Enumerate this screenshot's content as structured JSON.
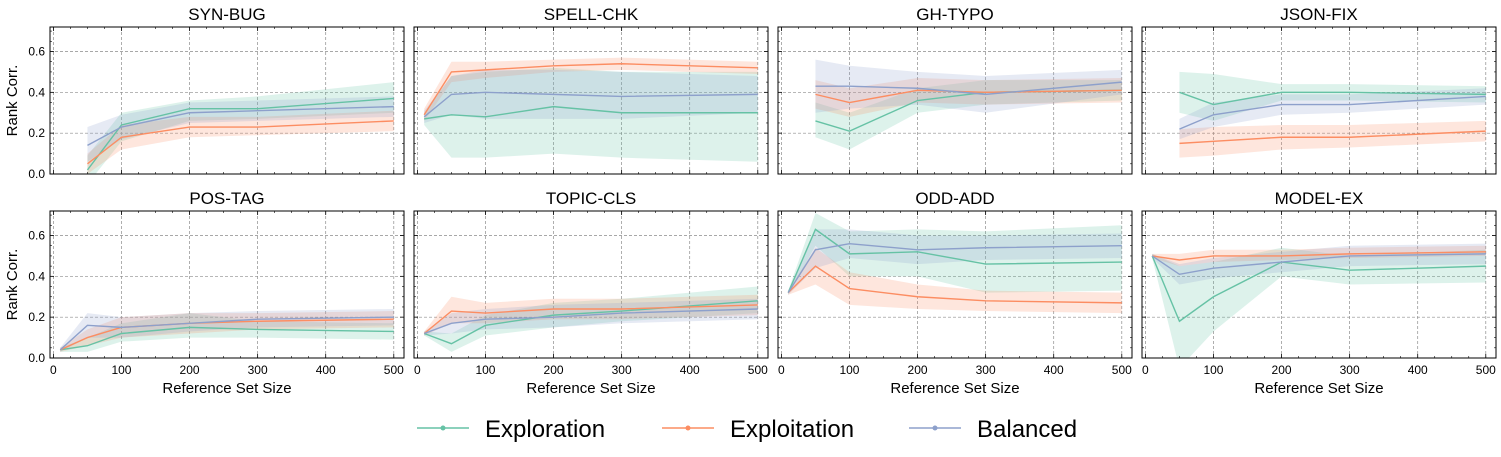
{
  "chart_data": {
    "type": "line",
    "xlabel": "Reference Set Size",
    "ylabel": "Rank Corr.",
    "xlim": [
      -5,
      515
    ],
    "ylim": [
      0,
      0.72
    ],
    "xticks": [
      0,
      100,
      200,
      300,
      400,
      500
    ],
    "yticks": [
      0.0,
      0.2,
      0.4,
      0.6
    ],
    "grid": true,
    "legend_position": "bottom-center",
    "x": [
      10,
      50,
      100,
      200,
      300,
      500
    ],
    "series_colors": {
      "Exploration": "#66c2a5",
      "Exploitation": "#fc8d62",
      "Balanced": "#8da0cb"
    },
    "panels": [
      {
        "title": "SYN-BUG",
        "series": [
          {
            "name": "Exploration",
            "values": [
              null,
              0.02,
              0.24,
              0.32,
              0.32,
              0.37
            ],
            "lower": [
              null,
              -0.05,
              0.16,
              0.26,
              0.27,
              0.3
            ],
            "upper": [
              null,
              0.09,
              0.3,
              0.36,
              0.38,
              0.45
            ]
          },
          {
            "name": "Exploitation",
            "values": [
              null,
              0.05,
              0.18,
              0.23,
              0.23,
              0.26
            ],
            "lower": [
              null,
              0.0,
              0.12,
              0.18,
              0.19,
              0.21
            ],
            "upper": [
              null,
              0.1,
              0.24,
              0.28,
              0.28,
              0.31
            ]
          },
          {
            "name": "Balanced",
            "values": [
              null,
              0.14,
              0.23,
              0.3,
              0.31,
              0.33
            ],
            "lower": [
              null,
              0.06,
              0.17,
              0.25,
              0.26,
              0.28
            ],
            "upper": [
              null,
              0.23,
              0.29,
              0.35,
              0.36,
              0.38
            ]
          }
        ]
      },
      {
        "title": "SPELL-CHK",
        "series": [
          {
            "name": "Exploration",
            "values": [
              0.27,
              0.29,
              0.28,
              0.33,
              0.3,
              0.3
            ],
            "lower": [
              0.24,
              0.08,
              0.08,
              0.1,
              0.08,
              0.06
            ],
            "upper": [
              0.3,
              0.48,
              0.5,
              0.52,
              0.5,
              0.5
            ]
          },
          {
            "name": "Exploitation",
            "values": [
              0.29,
              0.5,
              0.51,
              0.53,
              0.54,
              0.52
            ],
            "lower": [
              0.26,
              0.45,
              0.47,
              0.5,
              0.51,
              0.49
            ],
            "upper": [
              0.32,
              0.55,
              0.55,
              0.56,
              0.57,
              0.55
            ]
          },
          {
            "name": "Balanced",
            "values": [
              0.28,
              0.39,
              0.4,
              0.39,
              0.38,
              0.39
            ],
            "lower": [
              0.25,
              0.29,
              0.27,
              0.27,
              0.27,
              0.3
            ],
            "upper": [
              0.31,
              0.48,
              0.51,
              0.51,
              0.5,
              0.48
            ]
          }
        ]
      },
      {
        "title": "GH-TYPO",
        "series": [
          {
            "name": "Exploration",
            "values": [
              null,
              0.26,
              0.21,
              0.36,
              0.4,
              0.41
            ],
            "lower": [
              null,
              0.18,
              0.12,
              0.3,
              0.34,
              0.36
            ],
            "upper": [
              null,
              0.35,
              0.3,
              0.42,
              0.46,
              0.46
            ]
          },
          {
            "name": "Exploitation",
            "values": [
              null,
              0.39,
              0.35,
              0.41,
              0.4,
              0.41
            ],
            "lower": [
              null,
              0.32,
              0.28,
              0.35,
              0.34,
              0.35
            ],
            "upper": [
              null,
              0.46,
              0.42,
              0.47,
              0.46,
              0.47
            ]
          },
          {
            "name": "Balanced",
            "values": [
              null,
              0.43,
              0.43,
              0.42,
              0.39,
              0.45
            ],
            "lower": [
              null,
              0.3,
              0.32,
              0.34,
              0.3,
              0.39
            ],
            "upper": [
              null,
              0.56,
              0.53,
              0.5,
              0.48,
              0.51
            ]
          }
        ]
      },
      {
        "title": "JSON-FIX",
        "series": [
          {
            "name": "Exploration",
            "values": [
              null,
              0.4,
              0.34,
              0.4,
              0.4,
              0.39
            ],
            "lower": [
              null,
              0.3,
              0.26,
              0.36,
              0.36,
              0.35
            ],
            "upper": [
              null,
              0.5,
              0.49,
              0.44,
              0.44,
              0.43
            ]
          },
          {
            "name": "Exploitation",
            "values": [
              null,
              0.15,
              0.16,
              0.18,
              0.18,
              0.21
            ],
            "lower": [
              null,
              0.08,
              0.09,
              0.12,
              0.13,
              0.16
            ],
            "upper": [
              null,
              0.22,
              0.23,
              0.24,
              0.24,
              0.26
            ]
          },
          {
            "name": "Balanced",
            "values": [
              null,
              0.22,
              0.29,
              0.34,
              0.34,
              0.38
            ],
            "lower": [
              null,
              0.17,
              0.23,
              0.29,
              0.3,
              0.34
            ],
            "upper": [
              null,
              0.27,
              0.35,
              0.39,
              0.39,
              0.42
            ]
          }
        ]
      },
      {
        "title": "POS-TAG",
        "series": [
          {
            "name": "Exploration",
            "values": [
              0.04,
              0.06,
              0.12,
              0.15,
              0.14,
              0.13
            ],
            "lower": [
              0.03,
              0.03,
              0.08,
              0.1,
              0.1,
              0.09
            ],
            "upper": [
              0.05,
              0.1,
              0.17,
              0.22,
              0.18,
              0.17
            ]
          },
          {
            "name": "Exploitation",
            "values": [
              0.04,
              0.1,
              0.15,
              0.17,
              0.18,
              0.19
            ],
            "lower": [
              0.03,
              0.06,
              0.1,
              0.12,
              0.14,
              0.15
            ],
            "upper": [
              0.05,
              0.14,
              0.2,
              0.22,
              0.22,
              0.23
            ]
          },
          {
            "name": "Balanced",
            "values": [
              0.04,
              0.16,
              0.15,
              0.17,
              0.19,
              0.2
            ],
            "lower": [
              0.03,
              0.1,
              0.1,
              0.13,
              0.15,
              0.16
            ],
            "upper": [
              0.05,
              0.22,
              0.2,
              0.22,
              0.23,
              0.24
            ]
          }
        ]
      },
      {
        "title": "TOPIC-CLS",
        "series": [
          {
            "name": "Exploration",
            "values": [
              0.12,
              0.07,
              0.16,
              0.21,
              0.23,
              0.28
            ],
            "lower": [
              0.11,
              0.03,
              0.11,
              0.15,
              0.18,
              0.22
            ],
            "upper": [
              0.13,
              0.12,
              0.21,
              0.27,
              0.29,
              0.35
            ]
          },
          {
            "name": "Exploitation",
            "values": [
              0.12,
              0.23,
              0.22,
              0.24,
              0.24,
              0.26
            ],
            "lower": [
              0.11,
              0.17,
              0.17,
              0.19,
              0.19,
              0.21
            ],
            "upper": [
              0.13,
              0.3,
              0.27,
              0.29,
              0.29,
              0.31
            ]
          },
          {
            "name": "Balanced",
            "values": [
              0.12,
              0.17,
              0.19,
              0.2,
              0.22,
              0.24
            ],
            "lower": [
              0.11,
              0.12,
              0.14,
              0.15,
              0.17,
              0.19
            ],
            "upper": [
              0.13,
              0.22,
              0.24,
              0.26,
              0.27,
              0.29
            ]
          }
        ]
      },
      {
        "title": "ODD-ADD",
        "series": [
          {
            "name": "Exploration",
            "values": [
              0.32,
              0.63,
              0.51,
              0.52,
              0.46,
              0.47
            ],
            "lower": [
              0.31,
              0.55,
              0.4,
              0.4,
              0.32,
              0.33
            ],
            "upper": [
              0.33,
              0.71,
              0.62,
              0.63,
              0.62,
              0.65
            ]
          },
          {
            "name": "Exploitation",
            "values": [
              0.32,
              0.45,
              0.34,
              0.3,
              0.28,
              0.27
            ],
            "lower": [
              0.31,
              0.36,
              0.26,
              0.24,
              0.23,
              0.22
            ],
            "upper": [
              0.33,
              0.54,
              0.42,
              0.36,
              0.33,
              0.32
            ]
          },
          {
            "name": "Balanced",
            "values": [
              0.32,
              0.53,
              0.56,
              0.53,
              0.54,
              0.55
            ],
            "lower": [
              0.31,
              0.44,
              0.49,
              0.46,
              0.48,
              0.49
            ],
            "upper": [
              0.33,
              0.63,
              0.63,
              0.6,
              0.6,
              0.61
            ]
          }
        ]
      },
      {
        "title": "MODEL-EX",
        "series": [
          {
            "name": "Exploration",
            "values": [
              0.5,
              0.18,
              0.3,
              0.47,
              0.43,
              0.45
            ],
            "lower": [
              0.49,
              -0.05,
              0.13,
              0.4,
              0.36,
              0.37
            ],
            "upper": [
              0.51,
              0.45,
              0.47,
              0.54,
              0.5,
              0.53
            ]
          },
          {
            "name": "Exploitation",
            "values": [
              0.5,
              0.48,
              0.5,
              0.5,
              0.51,
              0.52
            ],
            "lower": [
              0.49,
              0.45,
              0.47,
              0.48,
              0.49,
              0.5
            ],
            "upper": [
              0.51,
              0.51,
              0.53,
              0.53,
              0.54,
              0.55
            ]
          },
          {
            "name": "Balanced",
            "values": [
              0.5,
              0.41,
              0.44,
              0.47,
              0.5,
              0.51
            ],
            "lower": [
              0.49,
              0.36,
              0.39,
              0.42,
              0.45,
              0.46
            ],
            "upper": [
              0.51,
              0.46,
              0.49,
              0.52,
              0.55,
              0.56
            ]
          }
        ]
      }
    ]
  }
}
